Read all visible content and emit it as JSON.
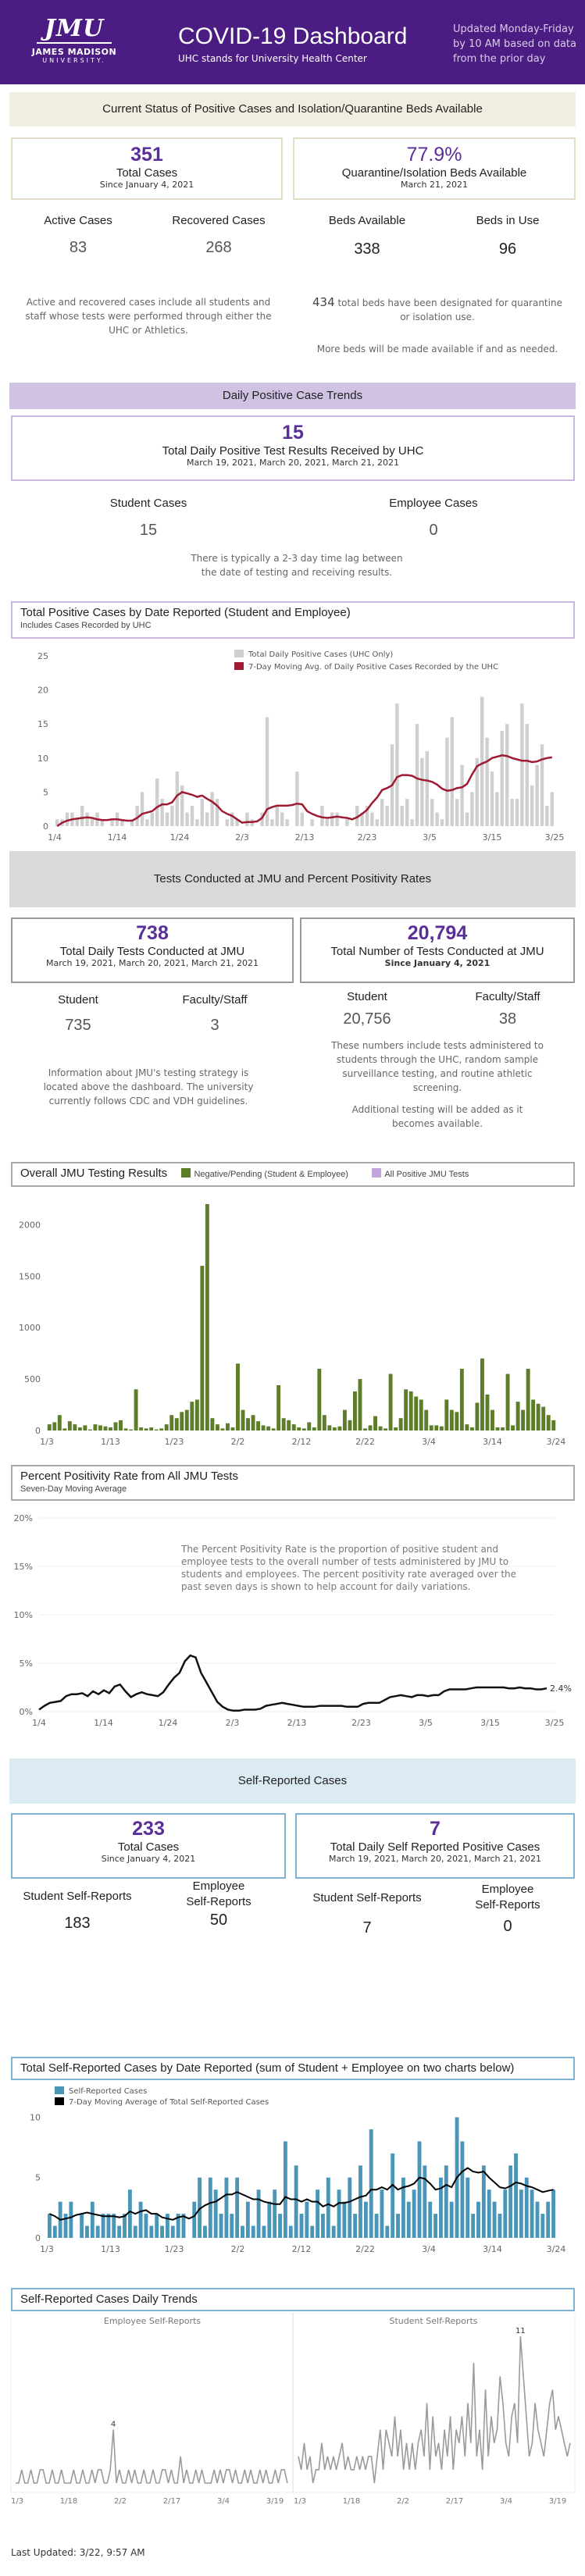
{
  "header": {
    "logo_main": "JMU",
    "logo_name": "JAMES MADISON",
    "logo_univ": "UNIVERSITY.",
    "title": "COVID-19 Dashboard",
    "subtitle": "UHC stands for University Health Center",
    "updated": "Updated Monday-Friday by 10 AM based on data from the prior day",
    "accent": "#4b1c81"
  },
  "current": {
    "band": "Current Status of Positive Cases and Isolation/Quarantine Beds Available",
    "total_cases": "351",
    "total_cases_label": "Total Cases",
    "total_cases_since": "Since January 4, 2021",
    "quarantine_pct": "77.9%",
    "quarantine_label": "Quarantine/Isolation Beds Available",
    "quarantine_date": "March 21, 2021",
    "active_label": "Active Cases",
    "active": "83",
    "recovered_label": "Recovered Cases",
    "recovered": "268",
    "beds_avail_label": "Beds Available",
    "beds_avail": "338",
    "beds_use_label": "Beds in Use",
    "beds_use": "96",
    "note_left": "Active and recovered cases include all students and staff whose tests were performed through either the UHC or Athletics.",
    "note_right_num": "434",
    "note_right": " total beds have been designated for quarantine or isolation use.",
    "note_right2": "More beds will be made available if and as needed."
  },
  "daily": {
    "band": "Daily Positive Case Trends",
    "value": "15",
    "label": "Total Daily Positive Test Results Received by UHC",
    "dates": "March 19, 2021, March 20, 2021, March 21, 2021",
    "student_label": "Student Cases",
    "student": "15",
    "employee_label": "Employee Cases",
    "employee": "0",
    "note": "There is typically a 2-3 day time lag between the date of testing and receiving results."
  },
  "chart1": {
    "title": "Total Positive Cases by Date Reported (Student and Employee)",
    "sub": "Includes Cases Recorded by UHC",
    "legend1": "Total Daily Positive Cases (UHC Only)",
    "legend2": "7-Day Moving Avg. of Daily Positive Cases Recorded by the UHC"
  },
  "tests": {
    "band": "Tests Conducted at JMU and Percent Positivity Rates",
    "daily": "738",
    "daily_label": "Total Daily Tests Conducted at JMU",
    "daily_dates": "March 19, 2021, March 20, 2021, March 21, 2021",
    "total": "20,794",
    "total_label": "Total Number of Tests Conducted at JMU",
    "total_since": "Since January 4, 2021",
    "student_label": "Student",
    "student": "735",
    "faculty_label": "Faculty/Staff",
    "faculty": "3",
    "student2": "20,756",
    "faculty2": "38",
    "note_left": "Information about JMU's testing strategy is located above the dashboard. The university currently follows CDC and VDH guidelines.",
    "note_right": "These numbers include tests administered to students through the UHC, random sample surveillance testing, and routine athletic screening.",
    "note_right2": "Additional testing will be added as it becomes available."
  },
  "chart2": {
    "title": "Overall JMU Testing Results",
    "legend1": "Negative/Pending (Student & Employee)",
    "legend2": "All Positive JMU Tests"
  },
  "chart3": {
    "title": "Percent Positivity Rate from All JMU Tests",
    "sub": "Seven-Day Moving Average",
    "desc": "The Percent Positivity Rate is the proportion of positive student and employee tests to the overall number of tests administered by JMU to students and employees.   The percent positivity rate averaged over the past seven days is shown to help account for daily variations.",
    "end_label": "2.4%"
  },
  "self": {
    "band": "Self-Reported Cases",
    "total": "233",
    "total_label": "Total Cases",
    "total_since": "Since January 4, 2021",
    "daily": "7",
    "daily_label": "Total Daily Self Reported Positive Cases",
    "daily_dates": "March 19, 2021, March 20, 2021, March 21, 2021",
    "stu_label": "Student Self-Reports",
    "stu": "183",
    "emp_label1": "Employee",
    "emp_label2": "Self-Reports",
    "emp": "50",
    "stu2": "7",
    "emp2": "0"
  },
  "chart4": {
    "title": "Total Self-Reported Cases by Date Reported (sum of Student + Employee on two charts below)",
    "legend1": "Self-Reported Cases",
    "legend2": "7-Day Moving Average of Total Self-Reported Cases"
  },
  "chart5": {
    "title": "Self-Reported Cases Daily Trends",
    "left": "Employee Self-Reports",
    "right": "Student Self-Reports",
    "left_peak": "4",
    "right_peak": "11"
  },
  "footer": {
    "last_updated": "Last Updated: 3/22, 9:57 AM"
  },
  "chart_data": [
    {
      "type": "bar",
      "title": "Total Positive Cases by Date Reported (Student and Employee)",
      "ylim": [
        0,
        25
      ],
      "yticks": [
        "0",
        "5",
        "10",
        "15",
        "20",
        "25"
      ],
      "xticks": [
        "1/4",
        "1/14",
        "1/24",
        "2/3",
        "2/13",
        "2/23",
        "3/5",
        "3/15",
        "3/25"
      ],
      "series": [
        {
          "name": "Total Daily Positive Cases (UHC Only)",
          "values": [
            1,
            1,
            2,
            2,
            1,
            3,
            2,
            1,
            2,
            1,
            0,
            1,
            2,
            1,
            0,
            1,
            3,
            5,
            1,
            2,
            7,
            4,
            2,
            3,
            8,
            6,
            2,
            3,
            1,
            4,
            2,
            5,
            4,
            0,
            1,
            2,
            1,
            0,
            2,
            1,
            0,
            2,
            16,
            1,
            3,
            2,
            1,
            0,
            8,
            2,
            0,
            1,
            0,
            3,
            1,
            2,
            2,
            0,
            1,
            0,
            3,
            2,
            3,
            2,
            1,
            4,
            3,
            12,
            18,
            3,
            4,
            1,
            15,
            10,
            11,
            4,
            2,
            1,
            13,
            16,
            4,
            9,
            2,
            5,
            10,
            19,
            13,
            8,
            5,
            14,
            15,
            4,
            4,
            18,
            15,
            6,
            9,
            12,
            3,
            5
          ]
        },
        {
          "name": "7-Day Moving Avg. of Daily Positive Cases Recorded by the UHC",
          "values": [
            0,
            0.5,
            0.8,
            1,
            1.1,
            1.2,
            1.3,
            1.2,
            1.0,
            0.9,
            0.9,
            1.0,
            1.0,
            0.9,
            0.8,
            0.8,
            1.2,
            1.8,
            2.0,
            2.2,
            2.8,
            3.2,
            3.2,
            3.5,
            4.5,
            5.0,
            4.8,
            4.6,
            4.3,
            4.5,
            4.0,
            3.6,
            3.0,
            2.2,
            1.8,
            1.5,
            1.0,
            0.5,
            0.6,
            0.6,
            0.7,
            1.2,
            2.5,
            2.8,
            3.0,
            3.0,
            3.0,
            3.1,
            3.3,
            3.2,
            2.2,
            1.8,
            1.5,
            1.3,
            1.2,
            1.3,
            1.4,
            1.3,
            1.2,
            1.0,
            1.3,
            1.8,
            2.4,
            3.4,
            4.2,
            5.3,
            5.6,
            6.0,
            7.2,
            7.5,
            7.5,
            7.4,
            7.0,
            6.8,
            6.7,
            6.5,
            6.1,
            5.5,
            5.2,
            5.3,
            5.6,
            5.7,
            6.2,
            7.6,
            8.8,
            9.2,
            9.5,
            10.0,
            10.2,
            10.4,
            10.3,
            10.0,
            9.8,
            9.6,
            9.6,
            9.4,
            9.5,
            9.8,
            10.0,
            10.1
          ]
        }
      ]
    },
    {
      "type": "bar",
      "title": "Overall JMU Testing Results",
      "ylim": [
        0,
        2200
      ],
      "yticks": [
        "0",
        "500",
        "1000",
        "1500",
        "2000"
      ],
      "xticks": [
        "1/3",
        "1/13",
        "1/23",
        "2/2",
        "2/12",
        "2/22",
        "3/4",
        "3/14",
        "3/24"
      ],
      "series": [
        {
          "name": "Negative/Pending (Student & Employee)",
          "values": [
            60,
            80,
            150,
            20,
            90,
            60,
            30,
            50,
            10,
            60,
            50,
            40,
            30,
            80,
            100,
            20,
            10,
            400,
            30,
            20,
            30,
            10,
            20,
            60,
            150,
            120,
            180,
            200,
            280,
            300,
            1600,
            2200,
            120,
            60,
            20,
            70,
            30,
            650,
            200,
            120,
            150,
            90,
            50,
            40,
            20,
            440,
            120,
            100,
            60,
            30,
            20,
            80,
            30,
            600,
            150,
            50,
            30,
            40,
            200,
            100,
            380,
            500,
            20,
            50,
            140,
            40,
            20,
            550,
            30,
            120,
            400,
            380,
            330,
            300,
            200,
            50,
            50,
            40,
            300,
            200,
            180,
            600,
            60,
            30,
            270,
            700,
            350,
            200,
            30,
            30,
            550,
            50,
            280,
            200,
            600,
            300,
            260,
            230,
            150,
            100
          ]
        },
        {
          "name": "All Positive JMU Tests",
          "values": []
        }
      ]
    },
    {
      "type": "line",
      "title": "Percent Positivity Rate from All JMU Tests",
      "ylim": [
        0,
        20
      ],
      "yticks": [
        "0%",
        "5%",
        "10%",
        "15%",
        "20%"
      ],
      "xticks": [
        "1/4",
        "1/14",
        "1/24",
        "2/3",
        "2/13",
        "2/23",
        "3/5",
        "3/15",
        "3/25"
      ],
      "series": [
        {
          "name": "Seven-Day Moving Average",
          "values": [
            0.2,
            0.6,
            0.9,
            1.0,
            1.1,
            1.6,
            1.8,
            1.8,
            1.9,
            1.6,
            2.1,
            1.8,
            2.2,
            1.9,
            2.6,
            2.8,
            2.1,
            1.5,
            1.8,
            2.0,
            1.8,
            1.7,
            1.6,
            2.0,
            2.8,
            3.5,
            4.0,
            5.2,
            5.8,
            5.6,
            4.0,
            3.0,
            2.0,
            1.0,
            0.5,
            0.2,
            0.1,
            0.1,
            0.2,
            0.2,
            0.2,
            0.3,
            0.6,
            0.7,
            0.8,
            0.9,
            0.8,
            0.7,
            0.6,
            0.5,
            0.5,
            0.5,
            0.6,
            0.6,
            0.6,
            0.6,
            0.6,
            0.5,
            0.5,
            0.5,
            0.8,
            0.9,
            0.9,
            0.9,
            1.2,
            1.5,
            1.6,
            1.7,
            1.6,
            1.5,
            1.7,
            1.7,
            1.6,
            1.7,
            1.7,
            2.1,
            2.3,
            2.3,
            2.3,
            2.3,
            2.4,
            2.5,
            2.5,
            2.5,
            2.5,
            2.5,
            2.5,
            2.4,
            2.4,
            2.5,
            2.4,
            2.4,
            2.3,
            2.3,
            2.4
          ]
        }
      ]
    },
    {
      "type": "bar",
      "title": "Total Self-Reported Cases by Date Reported",
      "ylim": [
        0,
        11
      ],
      "yticks": [
        "0",
        "5",
        "10"
      ],
      "xticks": [
        "1/3",
        "1/13",
        "1/23",
        "2/2",
        "2/12",
        "2/22",
        "3/4",
        "3/14",
        "3/24"
      ],
      "series": [
        {
          "name": "Self-Reported Cases",
          "values": [
            2,
            1,
            3,
            2,
            3,
            0,
            2,
            1,
            3,
            1,
            2,
            2,
            2,
            1,
            2,
            4,
            1,
            3,
            2,
            1,
            2,
            1,
            2,
            1,
            2,
            2,
            0,
            3,
            5,
            1,
            5,
            4,
            2,
            5,
            2,
            5,
            1,
            3,
            1,
            4,
            1,
            3,
            4,
            2,
            8,
            1,
            6,
            2,
            3,
            1,
            4,
            2,
            5,
            1,
            4,
            3,
            5,
            2,
            6,
            3,
            9,
            2,
            4,
            1,
            7,
            2,
            5,
            3,
            4,
            8,
            6,
            3,
            2,
            5,
            6,
            3,
            10,
            8,
            5,
            2,
            3,
            6,
            4,
            3,
            2,
            4,
            6,
            7,
            4,
            5,
            4,
            3,
            2,
            3,
            4
          ]
        },
        {
          "name": "7-Day Moving Average of Total Self-Reported Cases",
          "values": [
            2,
            1.8,
            1.5,
            1.6,
            1.7,
            1.9,
            2.0,
            2.1,
            2.0,
            1.9,
            1.8,
            1.8,
            1.8,
            1.7,
            1.8,
            2.2,
            2.0,
            2.2,
            2.3,
            2.0,
            2.0,
            1.7,
            1.6,
            1.5,
            1.7,
            1.8,
            1.6,
            1.8,
            2.4,
            2.7,
            2.9,
            3.0,
            3.3,
            3.6,
            3.6,
            3.8,
            3.6,
            3.4,
            3.2,
            3.2,
            3.0,
            2.9,
            2.8,
            2.8,
            3.4,
            3.2,
            3.2,
            3.0,
            3.2,
            3.0,
            3.0,
            2.6,
            2.8,
            2.6,
            2.9,
            2.9,
            3.0,
            3.2,
            3.4,
            3.5,
            4.0,
            4.0,
            4.2,
            4.0,
            4.4,
            4.0,
            4.2,
            4.3,
            4.5,
            5.0,
            4.9,
            4.5,
            4.0,
            4.1,
            4.4,
            4.2,
            5.0,
            5.5,
            5.8,
            5.5,
            5.4,
            5.5,
            5.0,
            4.6,
            4.2,
            4.1,
            4.3,
            4.6,
            4.5,
            4.3,
            4.2,
            4.0,
            3.8,
            3.9,
            4.0
          ]
        }
      ]
    }
  ]
}
